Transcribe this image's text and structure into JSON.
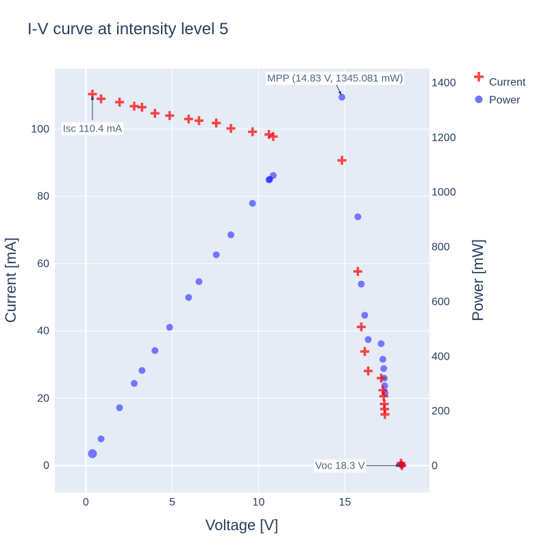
{
  "chart_data": {
    "type": "scatter",
    "title": "I-V curve at intensity level 5",
    "xlabel": "Voltage [V]",
    "ylabel": "Current [mA]",
    "y2label": "Power [mW]",
    "xlim": [
      -1.8,
      19.9
    ],
    "ylim": [
      -8,
      118
    ],
    "y2lim": [
      -100,
      1450
    ],
    "x_ticks": [
      0,
      5,
      10,
      15
    ],
    "y_ticks": [
      0,
      20,
      40,
      60,
      80,
      100
    ],
    "y2_ticks": [
      0,
      200,
      400,
      600,
      800,
      1000,
      1200,
      1400
    ],
    "grid": true,
    "legend": "top-right",
    "series": [
      {
        "name": "Current",
        "axis": "left",
        "marker": "cross",
        "color": "#ff0000",
        "points": [
          [
            0.38,
            110.4
          ],
          [
            0.88,
            109.0
          ],
          [
            1.95,
            108.0
          ],
          [
            2.8,
            106.8
          ],
          [
            3.25,
            106.5
          ],
          [
            4.0,
            104.7
          ],
          [
            4.85,
            104.0
          ],
          [
            5.95,
            103.0
          ],
          [
            6.55,
            102.5
          ],
          [
            7.55,
            101.8
          ],
          [
            8.4,
            100.2
          ],
          [
            9.65,
            99.2
          ],
          [
            10.6,
            98.4
          ],
          [
            10.85,
            97.8
          ],
          [
            14.83,
            90.7
          ],
          [
            15.75,
            57.7
          ],
          [
            15.95,
            41.2
          ],
          [
            16.15,
            33.9
          ],
          [
            16.35,
            28.1
          ],
          [
            17.1,
            26.0
          ],
          [
            17.2,
            22.4
          ],
          [
            17.25,
            20.6
          ],
          [
            17.28,
            18.3
          ],
          [
            17.3,
            16.8
          ],
          [
            17.32,
            15.2
          ],
          [
            18.25,
            0.7
          ],
          [
            18.3,
            0.0
          ]
        ]
      },
      {
        "name": "Power",
        "axis": "right",
        "marker": "circle",
        "color": "#0000ff",
        "points": [
          [
            0.38,
            42
          ],
          [
            0.88,
            96
          ],
          [
            1.95,
            210
          ],
          [
            2.8,
            299
          ],
          [
            3.25,
            346
          ],
          [
            4.0,
            419
          ],
          [
            4.85,
            504
          ],
          [
            5.95,
            613
          ],
          [
            6.55,
            671
          ],
          [
            7.55,
            769
          ],
          [
            8.4,
            842
          ],
          [
            9.65,
            957
          ],
          [
            10.6,
            1043
          ],
          [
            10.65,
            1045
          ],
          [
            10.85,
            1059
          ],
          [
            14.83,
            1345.081
          ],
          [
            15.75,
            908
          ],
          [
            15.95,
            662
          ],
          [
            16.15,
            548
          ],
          [
            16.35,
            459
          ],
          [
            17.1,
            444
          ],
          [
            17.2,
            387
          ],
          [
            17.25,
            353
          ],
          [
            17.28,
            318
          ],
          [
            17.3,
            290
          ],
          [
            17.32,
            264
          ],
          [
            18.25,
            3
          ],
          [
            18.3,
            0
          ]
        ]
      }
    ],
    "annotations": [
      {
        "text": "Isc 110.4 mA",
        "x": 0.38,
        "y": 110.4,
        "axis": "left"
      },
      {
        "text": "MPP (14.83 V, 1345.081 mW)",
        "x": 14.83,
        "y": 1345.081,
        "axis": "right"
      },
      {
        "text": "Voc 18.3 V",
        "x": 18.3,
        "y": 0,
        "axis": "left"
      }
    ]
  }
}
